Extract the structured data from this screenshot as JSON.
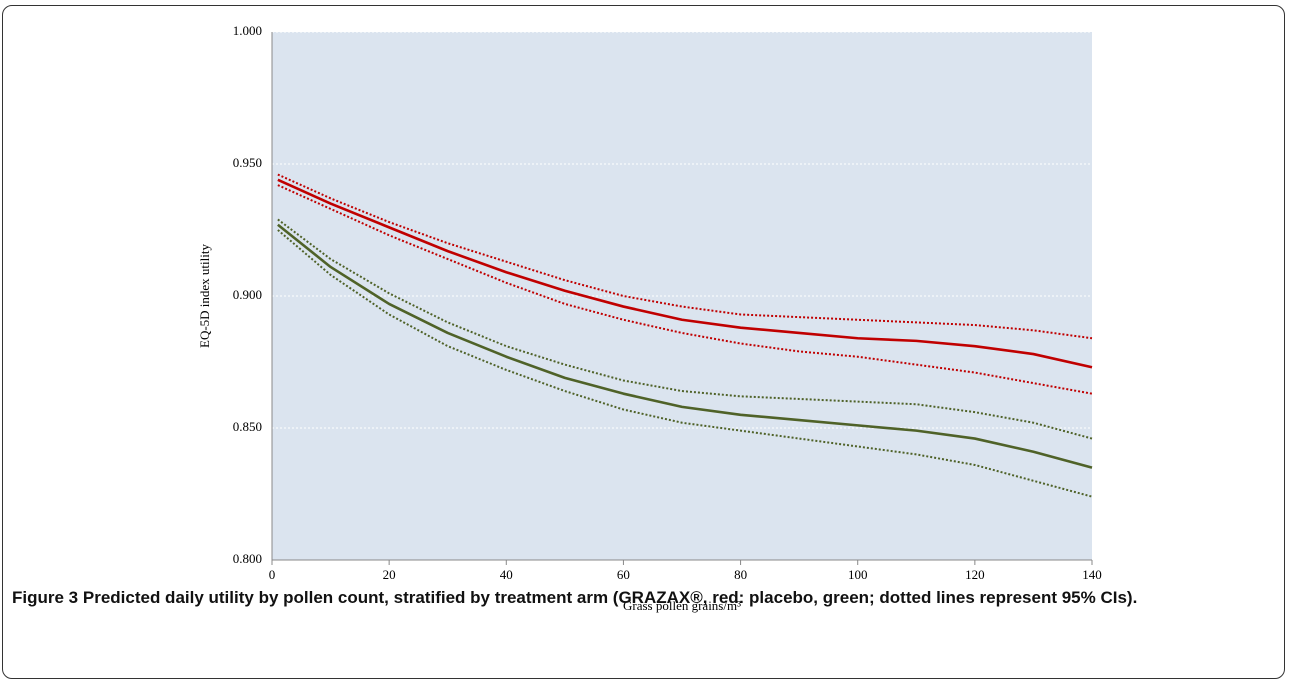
{
  "chart_data": {
    "type": "line",
    "ylabel": "EQ-5D index utility",
    "xlabel": "Grass pollen grains/m³",
    "x": [
      1,
      10,
      20,
      30,
      40,
      50,
      60,
      70,
      80,
      90,
      100,
      110,
      120,
      130,
      140
    ],
    "series": [
      {
        "color": "#c00000",
        "line_style": "solid",
        "values": [
          0.944,
          0.935,
          0.926,
          0.917,
          0.909,
          0.902,
          0.896,
          0.891,
          0.888,
          0.886,
          0.884,
          0.883,
          0.881,
          0.878,
          0.873
        ]
      },
      {
        "color": "#c00000",
        "line_style": "dotted",
        "values": [
          0.946,
          0.937,
          0.928,
          0.92,
          0.913,
          0.906,
          0.9,
          0.896,
          0.893,
          0.892,
          0.891,
          0.89,
          0.889,
          0.887,
          0.884
        ]
      },
      {
        "color": "#c00000",
        "line_style": "dotted",
        "values": [
          0.942,
          0.933,
          0.923,
          0.914,
          0.905,
          0.897,
          0.891,
          0.886,
          0.882,
          0.879,
          0.877,
          0.874,
          0.871,
          0.867,
          0.863
        ]
      },
      {
        "color": "#4f6228",
        "line_style": "solid",
        "values": [
          0.927,
          0.911,
          0.897,
          0.886,
          0.877,
          0.869,
          0.863,
          0.858,
          0.855,
          0.853,
          0.851,
          0.849,
          0.846,
          0.841,
          0.835
        ]
      },
      {
        "color": "#4f6228",
        "line_style": "dotted",
        "values": [
          0.929,
          0.914,
          0.901,
          0.89,
          0.881,
          0.874,
          0.868,
          0.864,
          0.862,
          0.861,
          0.86,
          0.859,
          0.856,
          0.852,
          0.846
        ]
      },
      {
        "color": "#4f6228",
        "line_style": "dotted",
        "values": [
          0.925,
          0.908,
          0.893,
          0.881,
          0.872,
          0.864,
          0.857,
          0.852,
          0.849,
          0.846,
          0.843,
          0.84,
          0.836,
          0.83,
          0.824
        ]
      }
    ],
    "xlim": [
      0,
      140
    ],
    "xticks": [
      0,
      20,
      40,
      60,
      80,
      100,
      120,
      140
    ],
    "ylim": [
      0.8,
      1.0
    ],
    "yticks": [
      {
        "value": 0.8,
        "label": "0.800"
      },
      {
        "value": 0.85,
        "label": "0.850"
      },
      {
        "value": 0.9,
        "label": "0.900"
      },
      {
        "value": 0.95,
        "label": "0.950"
      },
      {
        "value": 1.0,
        "label": "1.000"
      }
    ],
    "grid": true,
    "plot_background": "#dbe4ef"
  },
  "caption": {
    "label": "Figure 3",
    "text": "Predicted daily utility by pollen count, stratified by treatment arm (GRAZAX®, red: placebo, green; dotted lines represent 95% CIs)."
  }
}
